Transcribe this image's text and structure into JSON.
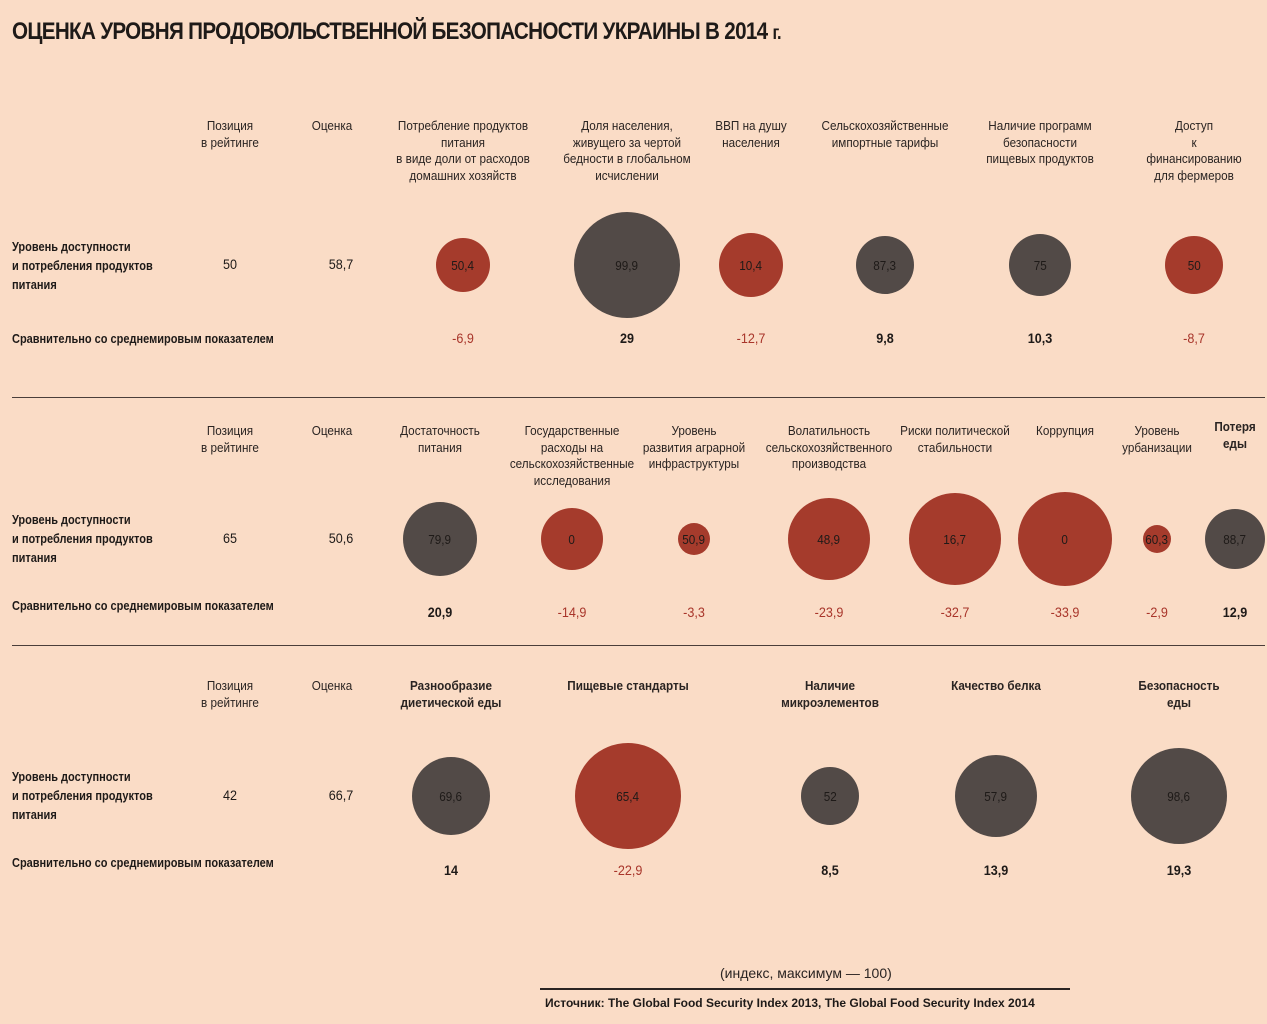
{
  "title": "ОЦЕНКА УРОВНЯ ПРОДОВОЛЬСТВЕННОЙ БЕЗОПАСНОСТИ УКРАИНЫ В 2014",
  "title_suffix": "г.",
  "unit_note": "(индекс, максимум — 100)",
  "source": "Источник: The Global Food Security Index 2013, The Global Food Security Index 2014",
  "colors": {
    "background": "#fadcc6",
    "gray": "#524a47",
    "red": "#a53b2c",
    "negative_text": "#a8352a"
  },
  "chart_data": [
    {
      "type": "bubble",
      "position_header": "Позиция\nв рейтинге",
      "score_header": "Оценка",
      "row_label": "Уровень доступности\nи потребления продуктов\nпитания",
      "compare_label": "Сравнительно со среднемировым показателем",
      "position": "50",
      "score": "58,7",
      "indicators": [
        {
          "name": "Потребление продуктов\nпитания\nв виде доли от расходов\nдомашних хозяйств",
          "value": 50.4,
          "label": "50,4",
          "compare": "-6,9",
          "color": "red"
        },
        {
          "name": "Доля населения,\nживущего за чертой\nбедности в глобальном\nисчислении",
          "value": 99.9,
          "label": "99,9",
          "compare": "29",
          "color": "gray"
        },
        {
          "name": "ВВП на душу\nнаселения",
          "value": 10.4,
          "label": "10,4",
          "compare": "-12,7",
          "color": "red"
        },
        {
          "name": "Сельскохозяйственные\nимпортные тарифы",
          "value": 87.3,
          "label": "87,3",
          "compare": "9,8",
          "color": "gray"
        },
        {
          "name": "Наличие программ\nбезопасности\nпищевых продуктов",
          "value": 75,
          "label": "75",
          "compare": "10,3",
          "color": "gray"
        },
        {
          "name": "Доступ\nк финансированию\nдля фермеров",
          "value": 50,
          "label": "50",
          "compare": "-8,7",
          "color": "red"
        }
      ]
    },
    {
      "type": "bubble",
      "position_header": "Позиция\nв рейтинге",
      "score_header": "Оценка",
      "row_label": "Уровень доступности\nи потребления продуктов\nпитания",
      "compare_label": "Сравнительно со среднемировым показателем",
      "position": "65",
      "score": "50,6",
      "indicators": [
        {
          "name": "Достаточность\nпитания",
          "value": 79.9,
          "label": "79,9",
          "compare": "20,9",
          "color": "gray"
        },
        {
          "name": "Государственные\nрасходы на\nсельскохозяйственные\nисследования",
          "value": 0,
          "label": "0",
          "compare": "-14,9",
          "color": "red"
        },
        {
          "name": "Уровень\nразвития аграрной\nинфраструктуры",
          "value": 50.9,
          "label": "50,9",
          "compare": "-3,3",
          "color": "red"
        },
        {
          "name": "Волатильность\nсельскохозяйственного\nпроизводства",
          "value": 48.9,
          "label": "48,9",
          "compare": "-23,9",
          "color": "red"
        },
        {
          "name": "Риски политической\nстабильности",
          "value": 16.7,
          "label": "16,7",
          "compare": "-32,7",
          "color": "red"
        },
        {
          "name": "Коррупция",
          "value": 0,
          "label": "0",
          "compare": "-33,9",
          "color": "red"
        },
        {
          "name": "Уровень\nурбанизации",
          "value": 60.3,
          "label": "60,3",
          "compare": "-2,9",
          "color": "red"
        },
        {
          "name": "Потеря\nеды",
          "value": 88.7,
          "label": "88,7",
          "compare": "12,9",
          "color": "gray"
        }
      ]
    },
    {
      "type": "bubble",
      "position_header": "Позиция\nв рейтинге",
      "score_header": "Оценка",
      "row_label": "Уровень доступности\nи потребления продуктов\nпитания",
      "compare_label": "Сравнительно со среднемировым показателем",
      "position": "42",
      "score": "66,7",
      "indicators": [
        {
          "name": "Разнообразие\nдиетической еды",
          "value": 69.6,
          "label": "69,6",
          "compare": "14",
          "color": "gray"
        },
        {
          "name": "Пищевые стандарты",
          "value": 65.4,
          "label": "65,4",
          "compare": "-22,9",
          "color": "red"
        },
        {
          "name": "Наличие\nмикроэлементов",
          "value": 52,
          "label": "52",
          "compare": "8,5",
          "color": "gray"
        },
        {
          "name": "Качество белка",
          "value": 57.9,
          "label": "57,9",
          "compare": "13,9",
          "color": "gray"
        },
        {
          "name": "Безопасность еды",
          "value": 98.6,
          "label": "98,6",
          "compare": "19,3",
          "color": "gray"
        }
      ]
    }
  ]
}
